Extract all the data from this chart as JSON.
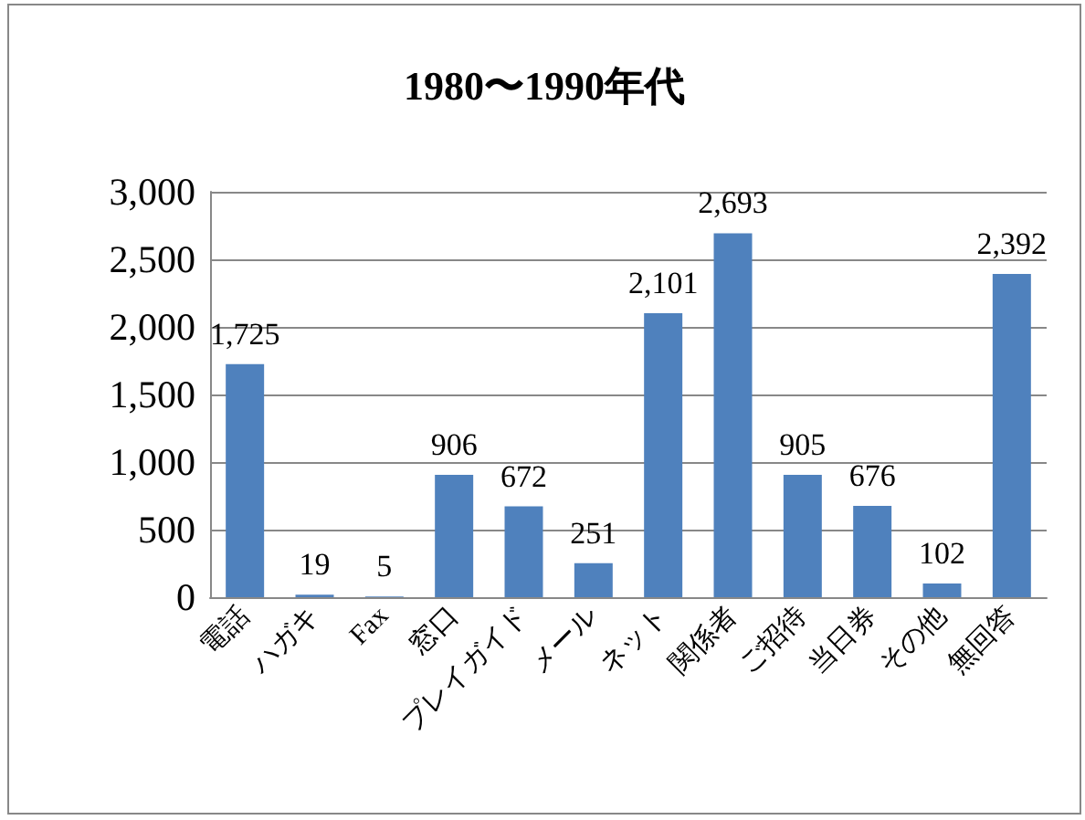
{
  "chart_data": {
    "type": "bar",
    "title": "1980〜1990年代",
    "categories": [
      "電話",
      "ハガキ",
      "Fax",
      "窓口",
      "プレイガイド",
      "メール",
      "ネット",
      "関係者",
      "ご招待",
      "当日券",
      "その他",
      "無回答"
    ],
    "values": [
      1725,
      19,
      5,
      906,
      672,
      251,
      2101,
      2693,
      905,
      676,
      102,
      2392
    ],
    "value_labels": [
      "1,725",
      "19",
      "5",
      "906",
      "672",
      "251",
      "2,101",
      "2,693",
      "905",
      "676",
      "102",
      "2,392"
    ],
    "color": "#4f81bd",
    "ylim": [
      0,
      3000
    ],
    "yticks": [
      0,
      500,
      {
        "value": 1000,
        "label": "1,000"
      },
      {
        "value": 1500,
        "label": "1,500"
      },
      {
        "value": 2000,
        "label": "2,000"
      },
      {
        "value": 2500,
        "label": "2,500"
      },
      {
        "value": 3000,
        "label": "3,000"
      }
    ],
    "grid": "y"
  }
}
